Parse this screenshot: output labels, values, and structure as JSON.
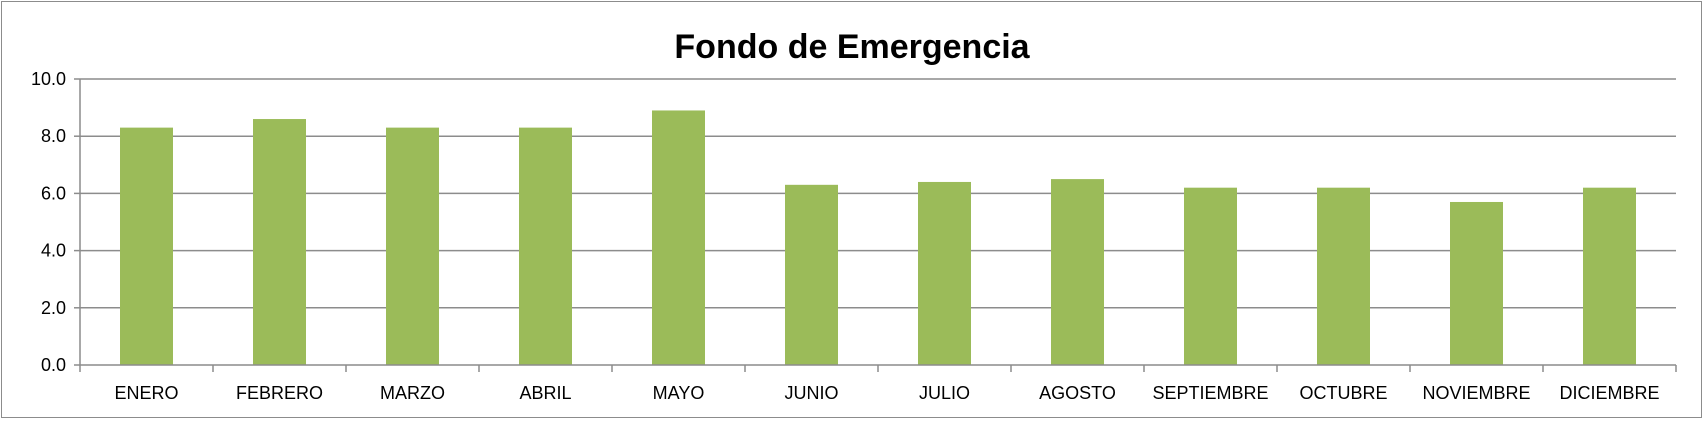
{
  "chart_data": {
    "type": "bar",
    "title": "Fondo de Emergencia",
    "xlabel": "",
    "ylabel": "",
    "categories": [
      "ENERO",
      "FEBRERO",
      "MARZO",
      "ABRIL",
      "MAYO",
      "JUNIO",
      "JULIO",
      "AGOSTO",
      "SEPTIEMBRE",
      "OCTUBRE",
      "NOVIEMBRE",
      "DICIEMBRE"
    ],
    "values": [
      8.3,
      8.6,
      8.3,
      8.3,
      8.9,
      6.3,
      6.4,
      6.5,
      6.2,
      6.2,
      5.7,
      6.2
    ],
    "ylim": [
      0,
      10
    ],
    "yticks": [
      "0.0",
      "2.0",
      "4.0",
      "6.0",
      "8.0",
      "10.0"
    ],
    "grid": true,
    "legend": "none",
    "colors": {
      "bar": "#9bbb59",
      "grid": "#8c8c8c",
      "axis": "#8c8c8c",
      "frame": "#8c8c8c"
    }
  }
}
